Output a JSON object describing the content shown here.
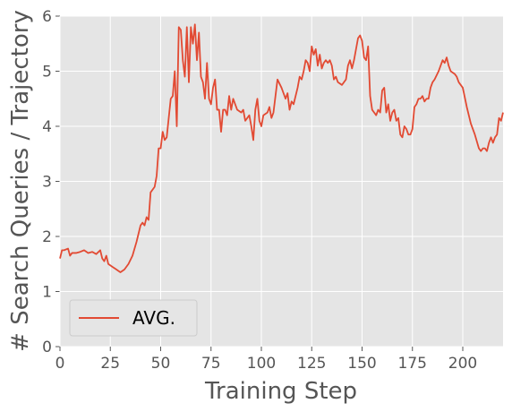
{
  "chart_data": {
    "type": "line",
    "xlabel": "Training Step",
    "ylabel": "# Search Queries / Trajectory",
    "xlim": [
      0,
      220
    ],
    "ylim": [
      0,
      6
    ],
    "xticks": [
      0,
      25,
      50,
      75,
      100,
      125,
      150,
      175,
      200
    ],
    "yticks": [
      0,
      1,
      2,
      3,
      4,
      5,
      6
    ],
    "grid": true,
    "legend": "lower left",
    "x": [
      0,
      1,
      2,
      4,
      5,
      6,
      8,
      10,
      12,
      14,
      16,
      18,
      20,
      21,
      22,
      23,
      24,
      26,
      28,
      30,
      32,
      34,
      36,
      38,
      40,
      41,
      42,
      43,
      44,
      45,
      47,
      48,
      49,
      50,
      51,
      52,
      53,
      55,
      56,
      57,
      58,
      59,
      60,
      61,
      62,
      63,
      64,
      65,
      66,
      67,
      68,
      69,
      70,
      71,
      72,
      73,
      74,
      75,
      76,
      77,
      78,
      79,
      80,
      81,
      82,
      83,
      84,
      85,
      86,
      88,
      90,
      91,
      92,
      94,
      95,
      96,
      97,
      98,
      99,
      100,
      101,
      103,
      104,
      105,
      106,
      108,
      110,
      112,
      113,
      114,
      115,
      116,
      118,
      119,
      120,
      121,
      122,
      123,
      124,
      125,
      126,
      127,
      128,
      129,
      130,
      131,
      132,
      133,
      134,
      135,
      136,
      137,
      138,
      140,
      141,
      142,
      143,
      144,
      145,
      146,
      147,
      148,
      149,
      150,
      151,
      152,
      153,
      154,
      155,
      156,
      157,
      158,
      159,
      160,
      161,
      162,
      163,
      164,
      165,
      166,
      167,
      168,
      169,
      170,
      171,
      172,
      173,
      174,
      175,
      176,
      177,
      178,
      179,
      180,
      181,
      182,
      183,
      184,
      185,
      186,
      188,
      190,
      191,
      192,
      193,
      194,
      196,
      197,
      198,
      200,
      202,
      204,
      205,
      206,
      208,
      209,
      210,
      211,
      212,
      213,
      214,
      215,
      216,
      217,
      218,
      219,
      220
    ],
    "series": [
      {
        "name": "AVG.",
        "color": "#E24A33",
        "values": [
          1.6,
          1.75,
          1.75,
          1.78,
          1.65,
          1.7,
          1.7,
          1.72,
          1.75,
          1.7,
          1.72,
          1.68,
          1.75,
          1.6,
          1.55,
          1.65,
          1.5,
          1.45,
          1.4,
          1.35,
          1.4,
          1.5,
          1.65,
          1.9,
          2.2,
          2.25,
          2.2,
          2.35,
          2.3,
          2.8,
          2.9,
          3.1,
          3.6,
          3.6,
          3.9,
          3.75,
          3.8,
          4.5,
          4.55,
          5.0,
          4.0,
          5.8,
          5.75,
          5.2,
          4.9,
          5.8,
          4.8,
          5.8,
          5.5,
          5.85,
          5.2,
          5.7,
          4.9,
          4.8,
          4.5,
          5.15,
          4.5,
          4.4,
          4.7,
          4.85,
          4.3,
          4.3,
          3.9,
          4.3,
          4.3,
          4.2,
          4.55,
          4.3,
          4.5,
          4.3,
          4.25,
          4.3,
          4.1,
          4.2,
          4.0,
          3.75,
          4.3,
          4.5,
          4.1,
          4.0,
          4.2,
          4.25,
          4.35,
          4.15,
          4.25,
          4.85,
          4.7,
          4.5,
          4.6,
          4.3,
          4.45,
          4.4,
          4.7,
          4.9,
          4.85,
          5.0,
          5.2,
          5.15,
          5.0,
          5.45,
          5.3,
          5.4,
          5.1,
          5.3,
          5.05,
          5.15,
          5.2,
          5.15,
          5.2,
          5.1,
          4.85,
          4.9,
          4.8,
          4.75,
          4.8,
          4.85,
          5.1,
          5.2,
          5.05,
          5.2,
          5.4,
          5.6,
          5.65,
          5.55,
          5.25,
          5.2,
          5.45,
          4.55,
          4.3,
          4.25,
          4.2,
          4.3,
          4.25,
          4.65,
          4.7,
          4.25,
          4.4,
          4.1,
          4.25,
          4.3,
          4.1,
          4.15,
          3.85,
          3.8,
          4.0,
          3.95,
          3.85,
          3.85,
          3.95,
          4.35,
          4.4,
          4.5,
          4.5,
          4.55,
          4.45,
          4.5,
          4.5,
          4.7,
          4.8,
          4.85,
          5.0,
          5.2,
          5.15,
          5.25,
          5.1,
          5.0,
          4.95,
          4.9,
          4.8,
          4.7,
          4.35,
          4.05,
          3.95,
          3.85,
          3.6,
          3.55,
          3.6,
          3.6,
          3.55,
          3.7,
          3.8,
          3.7,
          3.8,
          3.85,
          4.15,
          4.1,
          4.25
        ]
      }
    ]
  }
}
